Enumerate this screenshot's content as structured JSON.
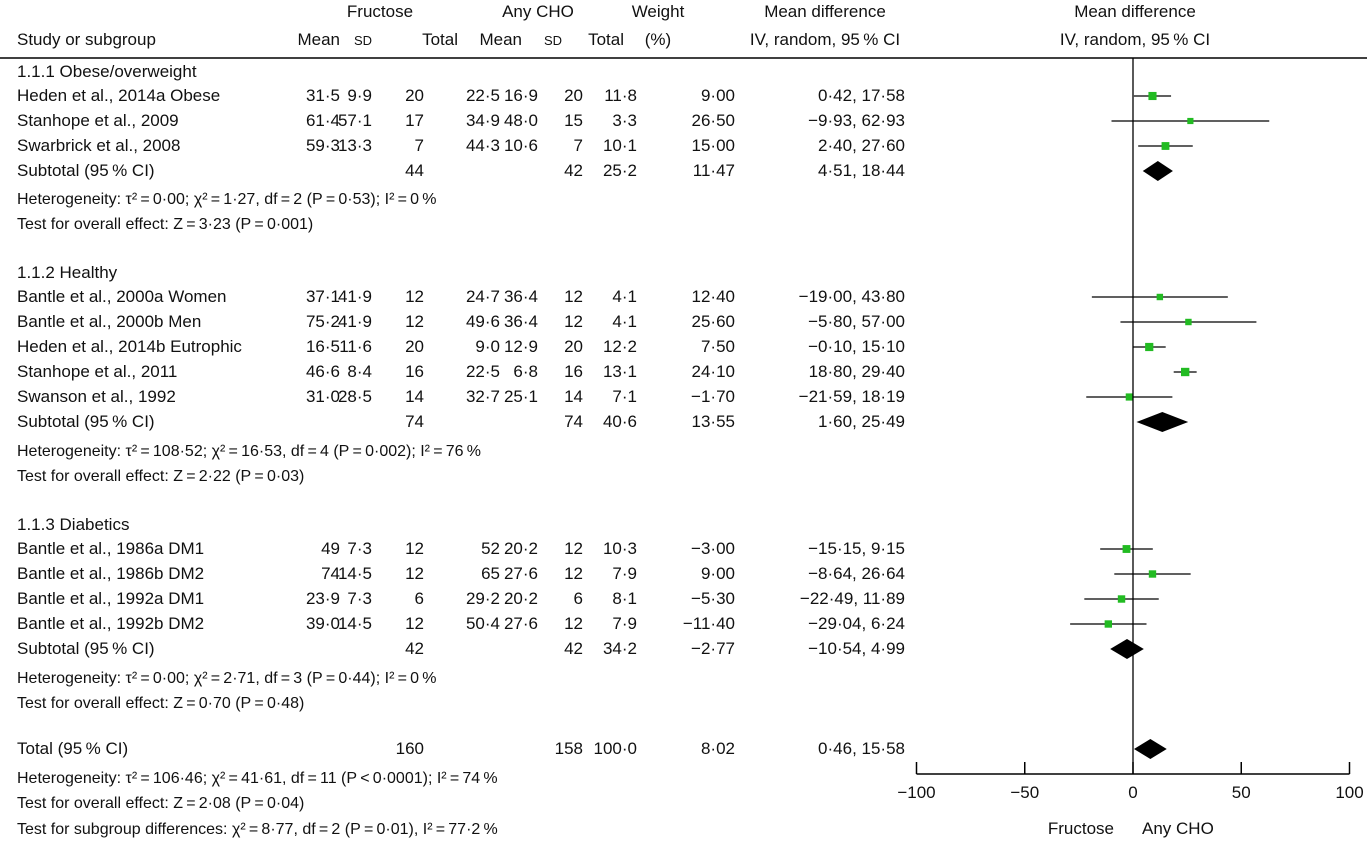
{
  "header": {
    "group1": "Fructose",
    "group2": "Any CHO",
    "weight_line1": "Weight",
    "weight_line2": "(%)",
    "md_line1": "Mean difference",
    "md_line2": "IV, random, 95 % CI",
    "plot_line1": "Mean difference",
    "plot_line2": "IV, random, 95 % CI",
    "study": "Study or subgroup",
    "mean": "Mean",
    "sd": "SD",
    "total": "Total"
  },
  "chart_data": {
    "type": "forest",
    "x_axis": {
      "range": [
        -100,
        100
      ],
      "ticks": [
        "−100",
        "−50",
        "0",
        "50",
        "100"
      ],
      "tick_values": [
        -100,
        -50,
        0,
        50,
        100
      ],
      "left_label": "Fructose",
      "right_label": "Any CHO"
    },
    "marker_color": "#22bb22",
    "groups": [
      {
        "title": "1.1.1 Obese/overweight",
        "studies": [
          {
            "study": "Heden et al., 2014a Obese",
            "f_mean": "31·5",
            "f_sd": "9·9",
            "f_n": "20",
            "c_mean": "22·5",
            "c_sd": "16·9",
            "c_n": "20",
            "weight": "11·8",
            "md": "9·00",
            "ci": "0·42, 17·58",
            "est": 9.0,
            "lo": 0.42,
            "hi": 17.58
          },
          {
            "study": "Stanhope et al., 2009",
            "f_mean": "61·4",
            "f_sd": "57·1",
            "f_n": "17",
            "c_mean": "34·9",
            "c_sd": "48·0",
            "c_n": "15",
            "weight": "3·3",
            "md": "26·50",
            "ci": "−9·93, 62·93",
            "est": 26.5,
            "lo": -9.93,
            "hi": 62.93
          },
          {
            "study": "Swarbrick et al., 2008",
            "f_mean": "59·3",
            "f_sd": "13·3",
            "f_n": "7",
            "c_mean": "44·3",
            "c_sd": "10·6",
            "c_n": "7",
            "weight": "10·1",
            "md": "15·00",
            "ci": "2·40, 27·60",
            "est": 15.0,
            "lo": 2.4,
            "hi": 27.6
          }
        ],
        "subtotal": {
          "label": "Subtotal (95 % CI)",
          "f_n": "44",
          "c_n": "42",
          "weight": "25·2",
          "md": "11·47",
          "ci": "4·51, 18·44",
          "est": 11.47,
          "lo": 4.51,
          "hi": 18.44
        },
        "heterogeneity": "Heterogeneity: τ² = 0·00; χ² = 1·27, df = 2 (P = 0·53); I² = 0 %",
        "overall": "Test for overall effect: Z = 3·23 (P = 0·001)"
      },
      {
        "title": "1.1.2 Healthy",
        "studies": [
          {
            "study": "Bantle et al., 2000a Women",
            "f_mean": "37·1",
            "f_sd": "41·9",
            "f_n": "12",
            "c_mean": "24·7",
            "c_sd": "36·4",
            "c_n": "12",
            "weight": "4·1",
            "md": "12·40",
            "ci": "−19·00, 43·80",
            "est": 12.4,
            "lo": -19.0,
            "hi": 43.8
          },
          {
            "study": "Bantle et al., 2000b Men",
            "f_mean": "75·2",
            "f_sd": "41·9",
            "f_n": "12",
            "c_mean": "49·6",
            "c_sd": "36·4",
            "c_n": "12",
            "weight": "4·1",
            "md": "25·60",
            "ci": "−5·80, 57·00",
            "est": 25.6,
            "lo": -5.8,
            "hi": 57.0
          },
          {
            "study": "Heden et al., 2014b Eutrophic",
            "f_mean": "16·5",
            "f_sd": "11·6",
            "f_n": "20",
            "c_mean": "9·0",
            "c_sd": "12·9",
            "c_n": "20",
            "weight": "12·2",
            "md": "7·50",
            "ci": "−0·10, 15·10",
            "est": 7.5,
            "lo": -0.1,
            "hi": 15.1
          },
          {
            "study": "Stanhope et al., 2011",
            "f_mean": "46·6",
            "f_sd": "8·4",
            "f_n": "16",
            "c_mean": "22·5",
            "c_sd": "6·8",
            "c_n": "16",
            "weight": "13·1",
            "md": "24·10",
            "ci": "18·80, 29·40",
            "est": 24.1,
            "lo": 18.8,
            "hi": 29.4
          },
          {
            "study": "Swanson et al., 1992",
            "f_mean": "31·0",
            "f_sd": "28·5",
            "f_n": "14",
            "c_mean": "32·7",
            "c_sd": "25·1",
            "c_n": "14",
            "weight": "7·1",
            "md": "−1·70",
            "ci": "−21·59, 18·19",
            "est": -1.7,
            "lo": -21.59,
            "hi": 18.19
          }
        ],
        "subtotal": {
          "label": "Subtotal (95 % CI)",
          "f_n": "74",
          "c_n": "74",
          "weight": "40·6",
          "md": "13·55",
          "ci": "1·60, 25·49",
          "est": 13.55,
          "lo": 1.6,
          "hi": 25.49
        },
        "heterogeneity": "Heterogeneity: τ² = 108·52; χ² = 16·53, df = 4 (P = 0·002); I² = 76 %",
        "overall": "Test for overall effect: Z = 2·22 (P = 0·03)"
      },
      {
        "title": "1.1.3 Diabetics",
        "studies": [
          {
            "study": "Bantle et al., 1986a DM1",
            "f_mean": "49",
            "f_sd": "7·3",
            "f_n": "12",
            "c_mean": "52",
            "c_sd": "20·2",
            "c_n": "12",
            "weight": "10·3",
            "md": "−3·00",
            "ci": "−15·15, 9·15",
            "est": -3.0,
            "lo": -15.15,
            "hi": 9.15
          },
          {
            "study": "Bantle et al., 1986b DM2",
            "f_mean": "74",
            "f_sd": "14·5",
            "f_n": "12",
            "c_mean": "65",
            "c_sd": "27·6",
            "c_n": "12",
            "weight": "7·9",
            "md": "9·00",
            "ci": "−8·64, 26·64",
            "est": 9.0,
            "lo": -8.64,
            "hi": 26.64
          },
          {
            "study": "Bantle et al., 1992a DM1",
            "f_mean": "23·9",
            "f_sd": "7·3",
            "f_n": "6",
            "c_mean": "29·2",
            "c_sd": "20·2",
            "c_n": "6",
            "weight": "8·1",
            "md": "−5·30",
            "ci": "−22·49, 11·89",
            "est": -5.3,
            "lo": -22.49,
            "hi": 11.89
          },
          {
            "study": "Bantle et al., 1992b DM2",
            "f_mean": "39·0",
            "f_sd": "14·5",
            "f_n": "12",
            "c_mean": "50·4",
            "c_sd": "27·6",
            "c_n": "12",
            "weight": "7·9",
            "md": "−11·40",
            "ci": "−29·04, 6·24",
            "est": -11.4,
            "lo": -29.04,
            "hi": 6.24
          }
        ],
        "subtotal": {
          "label": "Subtotal (95 % CI)",
          "f_n": "42",
          "c_n": "42",
          "weight": "34·2",
          "md": "−2·77",
          "ci": "−10·54, 4·99",
          "est": -2.77,
          "lo": -10.54,
          "hi": 4.99
        },
        "heterogeneity": "Heterogeneity: τ² = 0·00; χ² = 2·71, df = 3 (P = 0·44); I² = 0 %",
        "overall": "Test for overall effect: Z = 0·70 (P = 0·48)"
      }
    ],
    "total": {
      "label": "Total (95 % CI)",
      "f_n": "160",
      "c_n": "158",
      "weight": "100·0",
      "md": "8·02",
      "ci": "0·46, 15·58",
      "est": 8.02,
      "lo": 0.46,
      "hi": 15.58
    },
    "total_heterogeneity": "Heterogeneity: τ² = 106·46; χ² = 41·61, df = 11 (P < 0·0001); I² = 74 %",
    "total_overall": "Test for overall effect: Z = 2·08 (P = 0·04)",
    "subgroup_differences": "Test for subgroup differences: χ² = 8·77, df = 2 (P = 0·01), I² = 77·2 %"
  }
}
